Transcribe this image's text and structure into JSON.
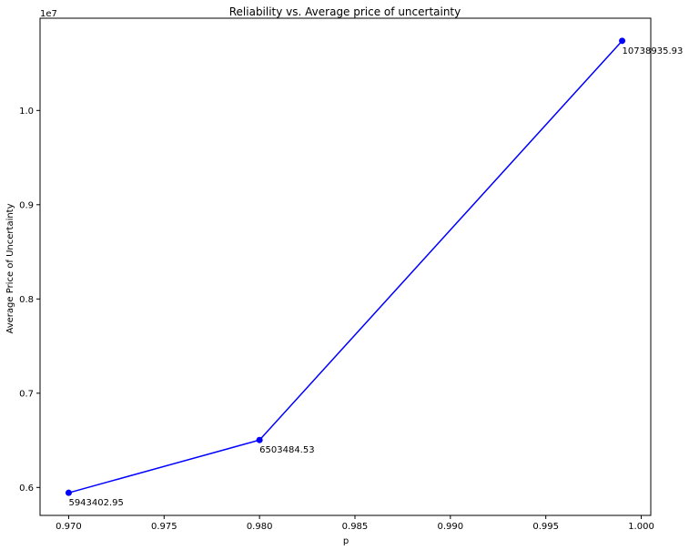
{
  "chart_data": {
    "type": "line",
    "title": "Reliability vs. Average price of uncertainty",
    "xlabel": "p",
    "ylabel": "Average Price of Uncertainty",
    "y_offset_label": "1e7",
    "x": [
      0.97,
      0.98,
      0.999
    ],
    "series": [
      {
        "values": [
          5943402.95,
          6503484.53,
          10738935.93
        ],
        "color": "#0000ff",
        "marker": "circle"
      }
    ],
    "data_labels": [
      "5943402.95",
      "6503484.53",
      "10738935.93"
    ],
    "xlim": [
      0.9685,
      1.0005
    ],
    "ylim": [
      5703626.3,
      10978712.5
    ],
    "x_ticks": [
      0.97,
      0.975,
      0.98,
      0.985,
      0.99,
      0.995,
      1.0
    ],
    "x_tick_labels": [
      "0.970",
      "0.975",
      "0.980",
      "0.985",
      "0.990",
      "0.995",
      "1.000"
    ],
    "y_ticks": [
      6000000,
      7000000,
      8000000,
      9000000,
      10000000
    ],
    "y_tick_labels": [
      "0.6",
      "0.7",
      "0.8",
      "0.9",
      "1.0"
    ],
    "grid": false
  }
}
